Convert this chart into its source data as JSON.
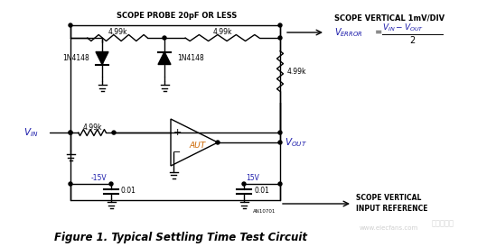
{
  "title": "Figure 1. Typical Settling Time Test Circuit",
  "title_color": "#000000",
  "title_fontsize": 9,
  "bg_color": "#ffffff",
  "circuit_color": "#000000",
  "label_color_blue": "#1a1aaa",
  "label_color_orange": "#cc6600",
  "scope_text1": "SCOPE PROBE 20pF OR LESS",
  "scope_text2": "SCOPE VERTICAL 1mV/DIV",
  "scope_bottom": "SCOPE VERTICAL",
  "input_ref": "INPUT REFERENCE",
  "res_labels": [
    "4.99k",
    "4.99k",
    "4.99k",
    "4.99k"
  ],
  "diode_labels": [
    "1N4148",
    "1N4148"
  ],
  "cap_labels": [
    "0.01",
    "0.01"
  ],
  "volt_neg": "-15V",
  "volt_pos": "15V",
  "aut_label": "AUT",
  "an_label": "AN10701",
  "vin_label": "V_{IN}",
  "vout_label": "V_{OUT}"
}
